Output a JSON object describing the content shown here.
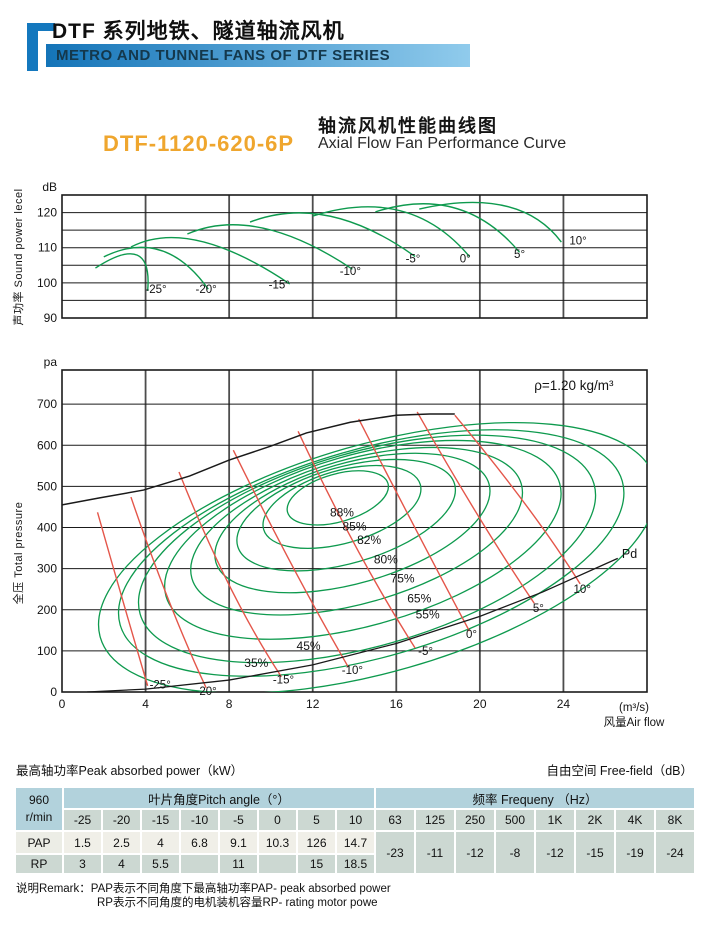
{
  "header": {
    "title_cn": "DTF 系列地铁、隧道轴流风机",
    "title_en": "METRO AND TUNNEL FANS OF DTF SERIES",
    "accent_color": "#1478be",
    "bar_gradient": [
      "#1474b8",
      "#90cbec"
    ]
  },
  "title_block": {
    "model": "DTF-1120-620-6P",
    "model_color": "#efa62e",
    "subtitle_cn": "轴流风机性能曲线图",
    "subtitle_en": "Axial Flow Fan Performance Curve"
  },
  "chart_data": [
    {
      "type": "line",
      "name": "sound_power_level",
      "ylabel": "声功率 Sound power lecel",
      "y_unit": "dB",
      "ylim": [
        90,
        125
      ],
      "yticks": [
        "90",
        "100",
        "110",
        "120"
      ],
      "xlim": [
        0,
        28
      ],
      "grid": {
        "x_step": 4,
        "y_step": 5
      },
      "curve_color": "#0e9a4e",
      "series": [
        {
          "label": "-25°",
          "points": [
            [
              1.6,
              104.2
            ],
            [
              3.6,
              107.9
            ],
            [
              4.1,
              97.7
            ]
          ],
          "label_at": [
            4.5,
            98.3
          ]
        },
        {
          "label": "-20°",
          "points": [
            [
              2.0,
              107.4
            ],
            [
              4.7,
              109.3
            ],
            [
              7.0,
              98.2
            ]
          ],
          "label_at": [
            6.9,
            98.3
          ]
        },
        {
          "label": "-15°",
          "points": [
            [
              3.3,
              110.2
            ],
            [
              6.6,
              111.9
            ],
            [
              10.9,
              99.7
            ]
          ],
          "label_at": [
            10.4,
            99.5
          ]
        },
        {
          "label": "-10°",
          "points": [
            [
              6.0,
              113.9
            ],
            [
              9.6,
              115.6
            ],
            [
              13.9,
              103.9
            ]
          ],
          "label_at": [
            13.8,
            103.4
          ]
        },
        {
          "label": "-5°",
          "points": [
            [
              9.0,
              117.3
            ],
            [
              12.8,
              119.0
            ],
            [
              16.9,
              107.5
            ]
          ],
          "label_at": [
            16.8,
            106.9
          ]
        },
        {
          "label": "0°",
          "points": [
            [
              12.0,
              119.0
            ],
            [
              16.2,
              120.5
            ],
            [
              19.5,
              107.5
            ]
          ],
          "label_at": [
            19.3,
            106.9
          ]
        },
        {
          "label": "5°",
          "points": [
            [
              15.0,
              120.2
            ],
            [
              18.8,
              121.3
            ],
            [
              21.9,
              108.7
            ]
          ],
          "label_at": [
            21.9,
            108.2
          ]
        },
        {
          "label": "10°",
          "points": [
            [
              17.1,
              121.0
            ],
            [
              21.2,
              121.9
            ],
            [
              23.9,
              111.6
            ]
          ],
          "label_at": [
            24.7,
            112.0
          ]
        }
      ]
    },
    {
      "type": "line",
      "name": "total_pressure",
      "ylabel": "全压 Total pressure",
      "y_unit": "pa",
      "x_unit": "(m³/s)",
      "xlabel": "风量Air flow",
      "ylim": [
        0,
        783
      ],
      "yticks": [
        "0",
        "100",
        "200",
        "300",
        "400",
        "500",
        "600",
        "700"
      ],
      "xlim": [
        0,
        28
      ],
      "xticks": [
        "0",
        "4",
        "8",
        "12",
        "16",
        "20",
        "24"
      ],
      "annotation": {
        "text": "ρ=1.20 kg/m³",
        "at": [
          24.5,
          744
        ]
      },
      "colors": {
        "efficiency": "#0e9a4e",
        "pitch": "#e4564a",
        "curve": "#1a1a1a"
      },
      "envelope": {
        "points": [
          [
            0,
            455
          ],
          [
            1.8,
            472
          ],
          [
            3.9,
            491
          ],
          [
            6.1,
            525
          ],
          [
            8.0,
            564
          ],
          [
            10.0,
            598
          ],
          [
            11.7,
            630
          ],
          [
            13.8,
            656
          ],
          [
            16.0,
            673
          ],
          [
            17.6,
            676
          ],
          [
            18.8,
            676
          ]
        ]
      },
      "pd_curve": {
        "label": "Pd",
        "points": [
          [
            1.2,
            0
          ],
          [
            4,
            7
          ],
          [
            8,
            29
          ],
          [
            12,
            66
          ],
          [
            16,
            118
          ],
          [
            20,
            184
          ],
          [
            23,
            243
          ],
          [
            26.6,
            325
          ]
        ],
        "label_at": [
          26.8,
          336
        ]
      },
      "pitch_curves": [
        {
          "label": "-25°",
          "points": [
            [
              1.7,
              437
            ],
            [
              2.9,
              224
            ],
            [
              4.1,
              15
            ]
          ],
          "label_at": [
            4.7,
            18
          ]
        },
        {
          "label": "-20°",
          "points": [
            [
              3.3,
              474
            ],
            [
              5.1,
              224
            ],
            [
              6.9,
              10
            ]
          ],
          "label_at": [
            6.9,
            3
          ]
        },
        {
          "label": "-15°",
          "points": [
            [
              5.6,
              535
            ],
            [
              8.0,
              260
            ],
            [
              10.5,
              37
            ]
          ],
          "label_at": [
            10.6,
            30
          ]
        },
        {
          "label": "-10°",
          "points": [
            [
              8.2,
              588
            ],
            [
              11.0,
              309
            ],
            [
              13.7,
              61
            ]
          ],
          "label_at": [
            13.9,
            54
          ]
        },
        {
          "label": "-5°",
          "points": [
            [
              11.3,
              634
            ],
            [
              14.1,
              350
            ],
            [
              16.9,
              107
            ]
          ],
          "label_at": [
            17.4,
            100
          ]
        },
        {
          "label": "0°",
          "points": [
            [
              14.2,
              664
            ],
            [
              17.0,
              389
            ],
            [
              19.5,
              148
            ]
          ],
          "label_at": [
            19.6,
            141
          ]
        },
        {
          "label": "5°",
          "points": [
            [
              17.0,
              681
            ],
            [
              19.9,
              430
            ],
            [
              22.6,
              216
            ]
          ],
          "label_at": [
            22.8,
            204
          ]
        },
        {
          "label": "10°",
          "points": [
            [
              18.8,
              673
            ],
            [
              22.2,
              455
            ],
            [
              24.8,
              263
            ]
          ],
          "label_at": [
            24.9,
            250
          ]
        }
      ],
      "contour_rotation_deg": -16,
      "efficiency_contours": [
        {
          "label": "88%",
          "c": [
            13.2,
            472
          ],
          "r": [
            2.5,
            58
          ],
          "label_at": [
            13.4,
            436
          ]
        },
        {
          "label": "85%",
          "c": [
            13.4,
            450
          ],
          "r": [
            3.9,
            88
          ],
          "label_at": [
            14.0,
            402
          ]
        },
        {
          "label": "82%",
          "c": [
            13.6,
            430
          ],
          "r": [
            5.4,
            117
          ],
          "label_at": [
            14.7,
            370
          ]
        },
        {
          "label": "80%",
          "c": [
            13.9,
            411
          ],
          "r": [
            6.8,
            146
          ],
          "label_at": [
            15.5,
            322
          ]
        },
        {
          "label": "75%",
          "c": [
            14.1,
            391
          ],
          "r": [
            8.2,
            175
          ],
          "label_at": [
            16.3,
            276
          ]
        },
        {
          "label": "65%",
          "c": [
            14.4,
            370
          ],
          "r": [
            9.8,
            207
          ],
          "label_at": [
            17.1,
            227
          ]
        },
        {
          "label": "55%",
          "c": [
            14.6,
            348
          ],
          "r": [
            11.3,
            236
          ],
          "label_at": [
            17.5,
            188
          ]
        },
        {
          "label": "45%",
          "c": [
            14.8,
            338
          ],
          "r": [
            12.5,
            253
          ],
          "label_at": [
            11.8,
            112
          ]
        },
        {
          "label": "35%",
          "c": [
            15.1,
            326
          ],
          "r": [
            13.8,
            277
          ],
          "label_at": [
            9.3,
            70
          ]
        }
      ]
    }
  ],
  "tables": {
    "left_caption": "最高轴功率Peak absorbed power（kW）",
    "right_caption": "自由空间 Free-field（dB）",
    "rpm_line1": "960",
    "rpm_line2": "r/min",
    "pitch_header": "叶片角度Pitch angle（°）",
    "freq_header": "频率  Frequeny  （Hz）",
    "pitch_angles": [
      "-25",
      "-20",
      "-15",
      "-10",
      "-5",
      "0",
      "5",
      "10"
    ],
    "frequencies": [
      "63",
      "125",
      "250",
      "500",
      "1K",
      "2K",
      "4K",
      "8K"
    ],
    "pap_label": "PAP",
    "pap_values": [
      "1.5",
      "2.5",
      "4",
      "6.8",
      "9.1",
      "10.3",
      "126",
      "14.7"
    ],
    "rp_label": "RP",
    "rp_values": [
      "3",
      "4",
      "5.5",
      "",
      "11",
      "",
      "15",
      "18.5"
    ],
    "freefield_values": [
      "-23",
      "-11",
      "-12",
      "-8",
      "-12",
      "-15",
      "-19",
      "-24"
    ]
  },
  "remark": {
    "line1": "说明Remark：PAP表示不同角度下最高轴功率PAP- peak absorbed power",
    "line2": "RP表示不同角度的电机装机容量RP- rating motor powe"
  }
}
